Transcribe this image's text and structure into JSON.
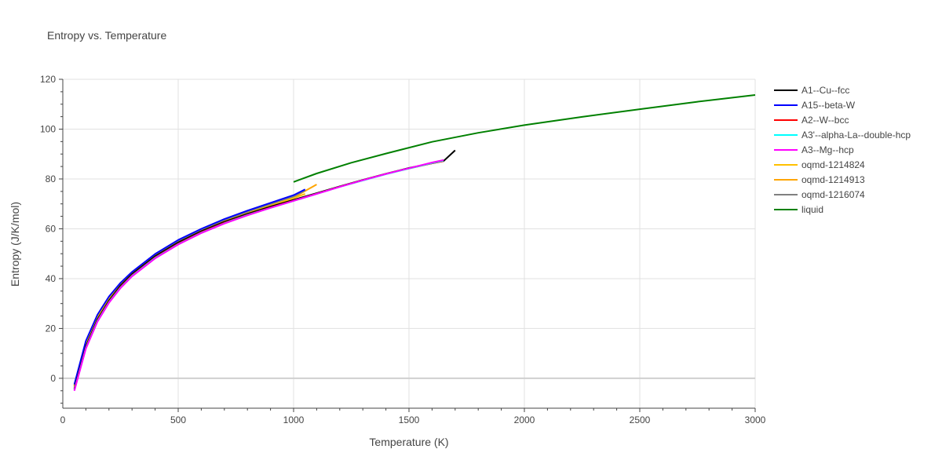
{
  "chart_data": {
    "type": "line",
    "title": "Entropy vs. Temperature",
    "xlabel": "Temperature (K)",
    "ylabel": "Entropy (J/K/mol)",
    "xlim": [
      0,
      3000
    ],
    "ylim": [
      -12,
      120
    ],
    "xticks": [
      0,
      500,
      1000,
      1500,
      2000,
      2500,
      3000
    ],
    "yticks": [
      0,
      20,
      40,
      60,
      80,
      100,
      120
    ],
    "xtick_labels": [
      "0",
      "500",
      "1000",
      "1500",
      "2000",
      "2500",
      "3000"
    ],
    "ytick_labels": [
      "0",
      "20",
      "40",
      "60",
      "80",
      "100",
      "120"
    ],
    "grid": true,
    "legend_position": "right",
    "series": [
      {
        "name": "A1--Cu--fcc",
        "color": "#000000",
        "x": [
          50,
          100,
          150,
          200,
          250,
          300,
          400,
          500,
          600,
          700,
          800,
          900,
          1000,
          1100,
          1200,
          1300,
          1400,
          1500,
          1600,
          1650,
          1700
        ],
        "y": [
          -4.2,
          12.8,
          23.6,
          31.2,
          37.2,
          41.8,
          49.0,
          54.5,
          59.0,
          62.8,
          66.0,
          68.9,
          71.6,
          74.3,
          77.0,
          79.6,
          82.1,
          84.4,
          86.3,
          87.2,
          91.5
        ]
      },
      {
        "name": "A15--beta-W",
        "color": "#0000ff",
        "x": [
          50,
          100,
          150,
          200,
          250,
          300,
          400,
          500,
          600,
          700,
          800,
          900,
          1000,
          1050
        ],
        "y": [
          -2.5,
          15.0,
          25.5,
          32.8,
          38.3,
          42.7,
          49.9,
          55.5,
          60.0,
          63.9,
          67.3,
          70.4,
          73.5,
          75.8
        ]
      },
      {
        "name": "A2--W--bcc",
        "color": "#ff0000",
        "x": [
          50,
          100,
          150,
          200,
          250,
          300,
          400,
          500,
          600,
          700,
          800,
          900,
          1000,
          1100,
          1200,
          1300,
          1400,
          1500,
          1600,
          1650
        ],
        "y": [
          -4.6,
          12.3,
          23.1,
          30.7,
          36.6,
          41.3,
          48.5,
          54.0,
          58.6,
          62.4,
          65.6,
          68.5,
          71.3,
          74.1,
          76.9,
          79.5,
          82.0,
          84.2,
          86.3,
          87.2
        ]
      },
      {
        "name": "A3'--alpha-La--double-hcp",
        "color": "#00ffff",
        "x": [
          50,
          100,
          150,
          200,
          250,
          300,
          400,
          500,
          600,
          700,
          800,
          900,
          1000,
          1100,
          1200,
          1300,
          1400,
          1500,
          1600,
          1650
        ],
        "y": [
          -4.8,
          12.1,
          22.9,
          30.5,
          36.4,
          41.1,
          48.3,
          53.8,
          58.4,
          62.2,
          65.5,
          68.4,
          71.2,
          74.0,
          76.8,
          79.4,
          81.9,
          84.2,
          86.4,
          87.4
        ]
      },
      {
        "name": "A3--Mg--hcp",
        "color": "#ff00ff",
        "x": [
          50,
          100,
          150,
          200,
          250,
          300,
          400,
          500,
          600,
          700,
          800,
          900,
          1000,
          1100,
          1200,
          1300,
          1400,
          1500,
          1600,
          1650
        ],
        "y": [
          -5.0,
          11.9,
          22.7,
          30.3,
          36.2,
          40.9,
          48.1,
          53.7,
          58.3,
          62.1,
          65.4,
          68.4,
          71.2,
          74.0,
          76.8,
          79.5,
          82.0,
          84.3,
          86.6,
          87.6
        ]
      },
      {
        "name": "oqmd-1214824",
        "color": "#ffc000",
        "x": [
          50,
          100,
          150,
          200,
          250,
          300,
          400,
          500,
          600,
          700,
          800,
          900,
          1000,
          1050
        ],
        "y": [
          -3.2,
          13.8,
          24.4,
          31.8,
          37.4,
          41.9,
          49.0,
          54.5,
          59.0,
          62.9,
          66.2,
          69.3,
          72.3,
          74.0
        ]
      },
      {
        "name": "oqmd-1214913",
        "color": "#ffa500",
        "x": [
          50,
          100,
          150,
          200,
          250,
          300,
          400,
          500,
          600,
          700,
          800,
          900,
          1000,
          1100
        ],
        "y": [
          -3.0,
          14.0,
          24.6,
          32.0,
          37.6,
          42.1,
          49.2,
          54.7,
          59.2,
          63.1,
          66.5,
          69.6,
          72.6,
          77.8
        ]
      },
      {
        "name": "oqmd-1216074",
        "color": "#808080",
        "x": [
          50,
          100,
          150,
          200,
          250,
          300,
          400,
          500,
          600,
          700,
          800,
          900,
          1000,
          1050
        ],
        "y": [
          -2.8,
          14.3,
          24.9,
          32.3,
          37.9,
          42.4,
          49.5,
          55.0,
          59.5,
          63.4,
          66.8,
          69.9,
          72.9,
          75.5
        ]
      },
      {
        "name": "liquid",
        "color": "#008000",
        "x": [
          1000,
          1100,
          1250,
          1400,
          1600,
          1800,
          2000,
          2250,
          2500,
          2750,
          3000
        ],
        "y": [
          78.8,
          82.2,
          86.5,
          90.2,
          94.9,
          98.5,
          101.6,
          104.9,
          108.0,
          111.0,
          113.7
        ]
      }
    ]
  }
}
